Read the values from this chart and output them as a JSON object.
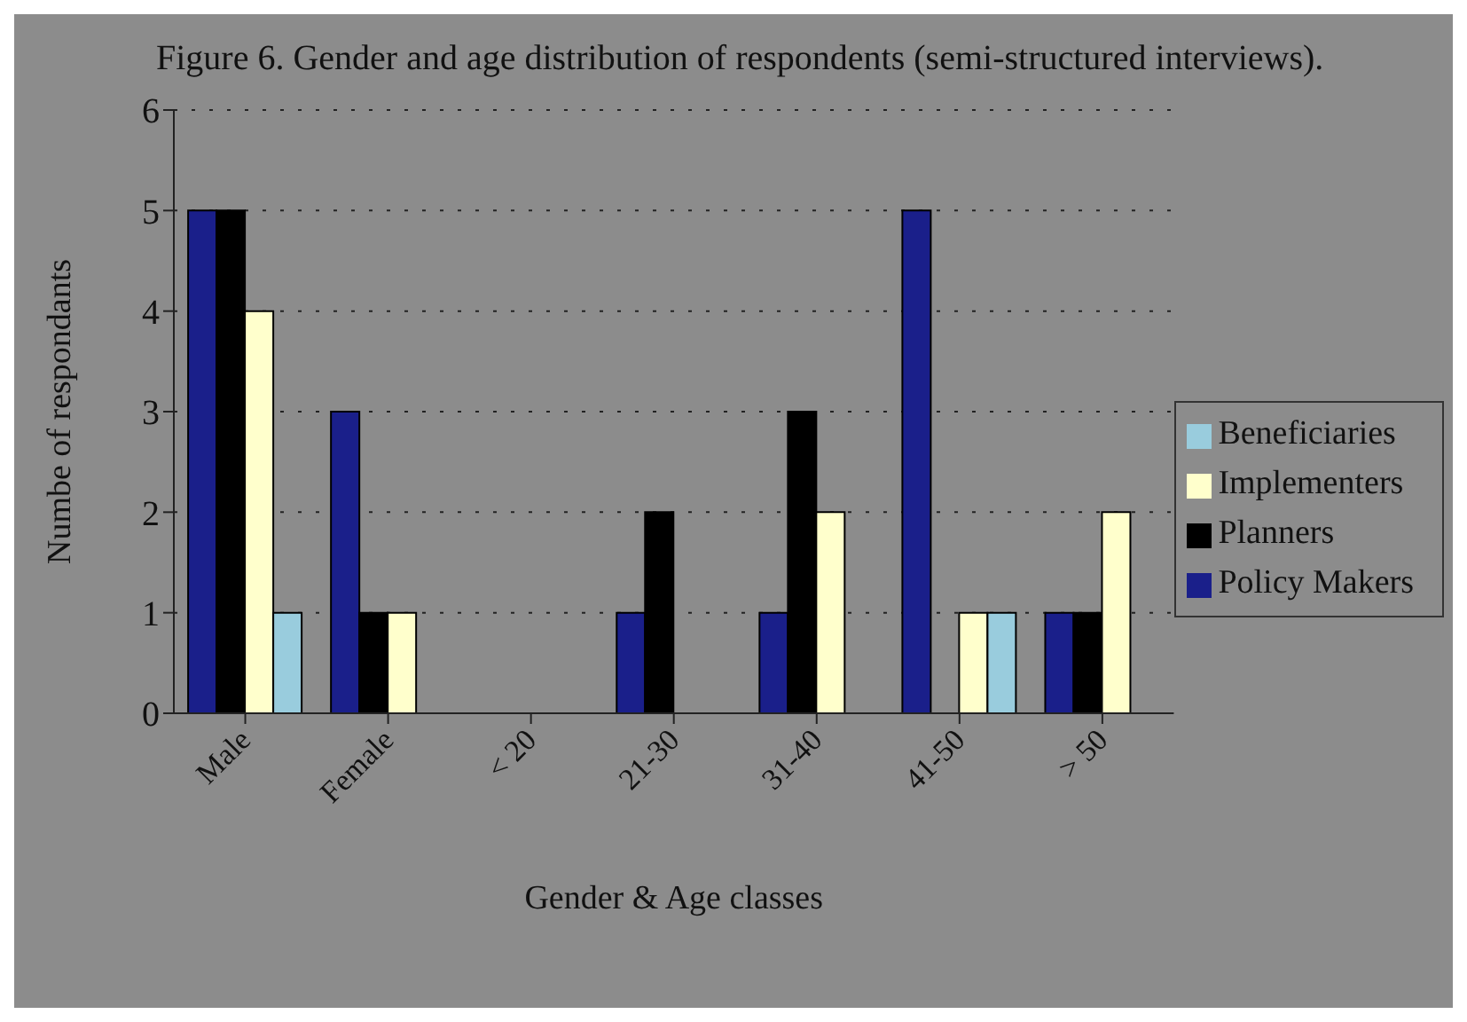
{
  "chart_data": {
    "type": "bar",
    "title": "Figure 6. Gender and age distribution of respondents (semi-structured interviews).",
    "xlabel": "Gender & Age classes",
    "ylabel": "Numbe of respondants",
    "categories": [
      "Male",
      "Female",
      "< 20",
      "21-30",
      "31-40",
      "41-50",
      "> 50"
    ],
    "series": [
      {
        "name": "Policy Makers",
        "color": "#1a1f8a",
        "values": [
          5,
          3,
          0,
          1,
          1,
          5,
          1
        ]
      },
      {
        "name": "Planners",
        "color": "#000000",
        "values": [
          5,
          1,
          0,
          2,
          3,
          0,
          1
        ]
      },
      {
        "name": "Implementers",
        "color": "#ffffcc",
        "values": [
          4,
          1,
          0,
          0,
          2,
          1,
          2
        ]
      },
      {
        "name": "Beneficiaries",
        "color": "#99ccdd",
        "values": [
          1,
          0,
          0,
          0,
          0,
          1,
          0
        ]
      }
    ],
    "ylim": [
      0,
      6
    ],
    "yticks": [
      0,
      1,
      2,
      3,
      4,
      5,
      6
    ],
    "grid": "y",
    "legend": "right"
  }
}
